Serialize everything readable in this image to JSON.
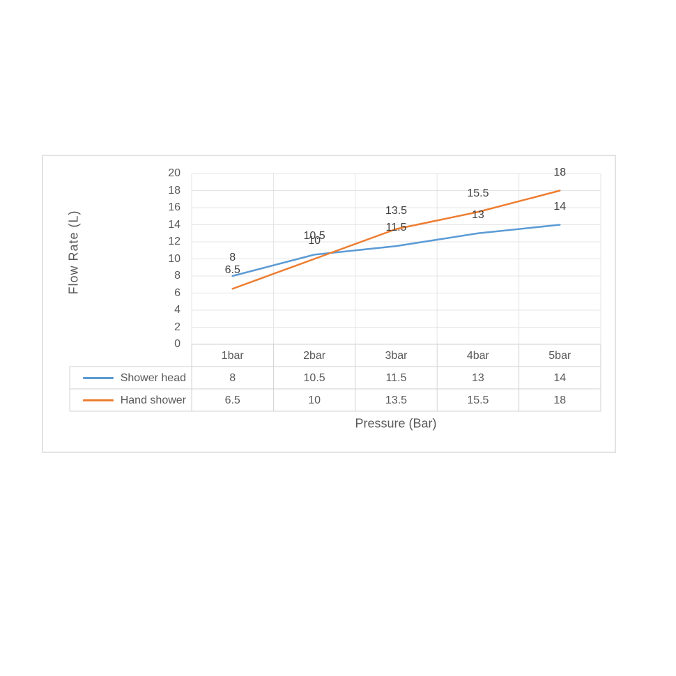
{
  "chart_data": {
    "type": "line",
    "title": "",
    "categories": [
      "1bar",
      "2bar",
      "3bar",
      "4bar",
      "5bar"
    ],
    "series": [
      {
        "name": "Shower head",
        "color": "#5B9BD5",
        "values": [
          8,
          10.5,
          11.5,
          13,
          14
        ]
      },
      {
        "name": "Hand shower",
        "color": "#ED7D31",
        "values": [
          6.5,
          10,
          13.5,
          15.5,
          18
        ]
      }
    ],
    "xlabel": "Pressure (Bar)",
    "ylabel": "Flow Rate (L)",
    "ylim": [
      0,
      20
    ],
    "yticks": [
      0,
      2,
      4,
      6,
      8,
      10,
      12,
      14,
      16,
      18,
      20
    ],
    "grid": true,
    "data_labels": true,
    "legend_position": "data-table-left",
    "data_table": true
  },
  "theme": {
    "background": "#FFFFFF",
    "frame_border": "#E3E3E3",
    "gridline": "#E4E4E4",
    "table_border": "#D2D2D2",
    "axis_text": "#595959",
    "data_label_text": "#404040"
  }
}
